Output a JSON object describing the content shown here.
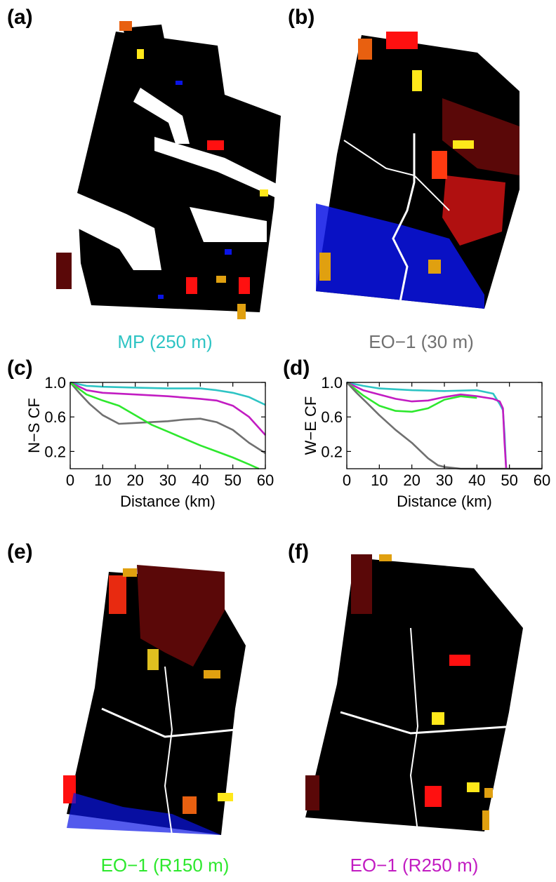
{
  "panels": {
    "a": {
      "label": "(a)",
      "caption": "MP (250 m)",
      "caption_color": "#2ec4c4"
    },
    "b": {
      "label": "(b)",
      "caption": "EO−1 (30 m)",
      "caption_color": "#707070"
    },
    "c": {
      "label": "(c)"
    },
    "d": {
      "label": "(d)"
    },
    "e": {
      "label": "(e)",
      "caption": "EO−1 (R150 m)",
      "caption_color": "#2ee82e"
    },
    "f": {
      "label": "(f)",
      "caption": "EO−1 (R250 m)",
      "caption_color": "#c21cc2"
    }
  },
  "map_colors": {
    "land": "#000000",
    "water": "#ffffff",
    "blue": "#0a14e6",
    "red": "#ff1010",
    "darkred": "#5a0808",
    "orange": "#e86010",
    "yellow": "#ffe81a",
    "gold": "#e0a010"
  },
  "chart_data": [
    {
      "type": "line",
      "panel": "c",
      "xlabel": "Distance (km)",
      "ylabel": "N−S CF",
      "xlim": [
        0,
        60
      ],
      "ylim": [
        0,
        1.0
      ],
      "xticks": [
        "0",
        "10",
        "20",
        "30",
        "40",
        "50",
        "60"
      ],
      "yticks": [
        "0.2",
        "0.6",
        "1.0"
      ],
      "series": [
        {
          "color": "#2ec4c4",
          "x": [
            0,
            5,
            10,
            20,
            30,
            40,
            45,
            50,
            55,
            60
          ],
          "y": [
            1.0,
            0.96,
            0.95,
            0.94,
            0.93,
            0.93,
            0.91,
            0.88,
            0.83,
            0.74
          ]
        },
        {
          "color": "#c21cc2",
          "x": [
            0,
            5,
            10,
            20,
            30,
            40,
            45,
            50,
            55,
            60
          ],
          "y": [
            1.0,
            0.91,
            0.88,
            0.86,
            0.84,
            0.81,
            0.79,
            0.73,
            0.6,
            0.39
          ]
        },
        {
          "color": "#707070",
          "x": [
            0,
            3,
            6,
            10,
            15,
            20,
            25,
            30,
            35,
            40,
            45,
            50,
            55,
            60
          ],
          "y": [
            1.0,
            0.87,
            0.75,
            0.62,
            0.52,
            0.53,
            0.54,
            0.55,
            0.57,
            0.58,
            0.54,
            0.45,
            0.3,
            0.18
          ]
        },
        {
          "color": "#2ee82e",
          "x": [
            0,
            5,
            10,
            15,
            20,
            25,
            30,
            35,
            40,
            45,
            50,
            55,
            58
          ],
          "y": [
            1.0,
            0.86,
            0.79,
            0.73,
            0.62,
            0.51,
            0.43,
            0.35,
            0.27,
            0.2,
            0.13,
            0.05,
            0.0
          ]
        }
      ]
    },
    {
      "type": "line",
      "panel": "d",
      "xlabel": "Distance (km)",
      "ylabel": "W−E CF",
      "xlim": [
        0,
        60
      ],
      "ylim": [
        0,
        1.0
      ],
      "xticks": [
        "0",
        "10",
        "20",
        "30",
        "40",
        "50",
        "60"
      ],
      "yticks": [
        "0.2",
        "0.6",
        "1.0"
      ],
      "series": [
        {
          "color": "#2ec4c4",
          "x": [
            0,
            5,
            10,
            20,
            30,
            40,
            45,
            47,
            48,
            48.5,
            49
          ],
          "y": [
            1.0,
            0.96,
            0.93,
            0.91,
            0.9,
            0.91,
            0.87,
            0.75,
            0.68,
            0.4,
            0.0
          ]
        },
        {
          "color": "#c21cc2",
          "x": [
            0,
            5,
            10,
            15,
            20,
            25,
            30,
            35,
            40,
            45,
            47,
            48,
            48.5,
            49
          ],
          "y": [
            1.0,
            0.91,
            0.86,
            0.81,
            0.78,
            0.79,
            0.83,
            0.86,
            0.84,
            0.81,
            0.78,
            0.7,
            0.3,
            0.0
          ]
        },
        {
          "color": "#2ee82e",
          "x": [
            0,
            5,
            10,
            15,
            20,
            25,
            30,
            35,
            40
          ],
          "y": [
            1.0,
            0.85,
            0.73,
            0.67,
            0.66,
            0.7,
            0.8,
            0.84,
            0.82
          ]
        },
        {
          "color": "#707070",
          "x": [
            0,
            3,
            6,
            10,
            15,
            20,
            25,
            28,
            30,
            35,
            40,
            50,
            60
          ],
          "y": [
            1.0,
            0.88,
            0.77,
            0.62,
            0.45,
            0.3,
            0.12,
            0.04,
            0.02,
            0.0,
            0.0,
            0.0,
            0.0
          ]
        }
      ]
    }
  ]
}
